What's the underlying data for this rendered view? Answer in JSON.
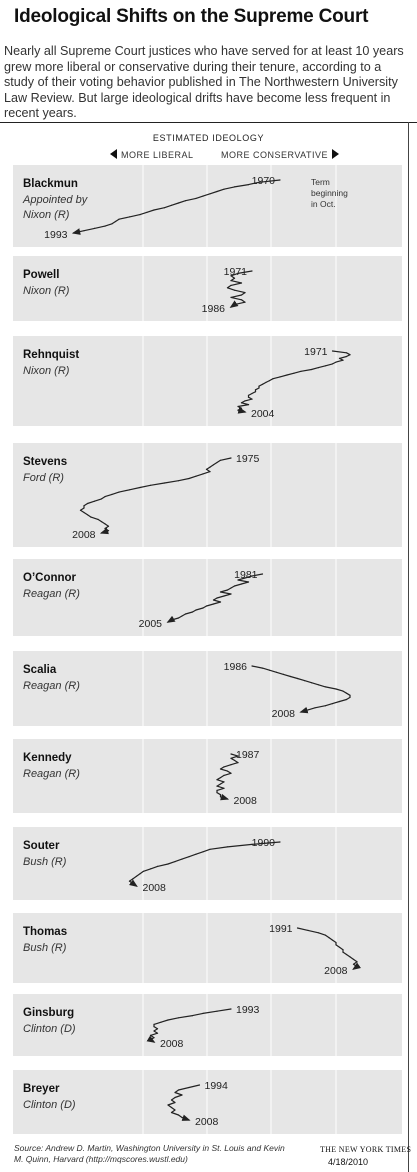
{
  "title": "Ideological Shifts on the Supreme Court",
  "subtitle": "Nearly all Supreme Court justices who have served for at least 10 years grew more liberal or conservative during their tenure, according to a study of their voting behavior published in The Northwestern University Law Review. But large ideological drifts have become less frequent in recent years.",
  "axis": {
    "heading": "ESTIMATED IDEOLOGY",
    "left_label": "MORE LIBERAL",
    "right_label": "MORE CONSERVATIVE"
  },
  "source": "Source: Andrew D. Martin, Washington University in St. Louis and Kevin M. Quinn, Harvard (http://mqscores.wustl.edu)",
  "credit": "THE NEW YORK TIMES",
  "date": "4/18/2010",
  "colors": {
    "panel": "#e6e6e6",
    "grid": "#ffffff",
    "line": "#222222"
  },
  "chart_data": {
    "type": "line",
    "xlabel": "ESTIMATED IDEOLOGY",
    "ylabel": "",
    "x_direction": [
      "MORE LIBERAL",
      "MORE CONSERVATIVE"
    ],
    "xlim": [
      -4,
      4
    ],
    "grid": true,
    "series": [
      {
        "name": "Blackmun",
        "appointed": [
          "Appointed by",
          "Nixon (R)"
        ],
        "start_label": "1970",
        "end_label": "1993",
        "note": [
          "Term",
          "beginning",
          "in Oct."
        ],
        "x": [
          2.0,
          1.4,
          1.1,
          0.7,
          0.4,
          0.2,
          0.0,
          -0.2,
          -0.4,
          -0.7,
          -0.9,
          -1.1,
          -1.3,
          -1.6,
          -1.8,
          -2.0,
          -2.3,
          -2.6,
          -2.7,
          -2.8,
          -3.0,
          -3.3,
          -3.6,
          -3.9
        ],
        "y": [
          1970,
          1971,
          1972,
          1973,
          1974,
          1975,
          1976,
          1977,
          1978,
          1979,
          1980,
          1981,
          1982,
          1983,
          1984,
          1985,
          1986,
          1987,
          1988,
          1989,
          1990,
          1991,
          1992,
          1993
        ]
      },
      {
        "name": "Powell",
        "appointed": [
          "Nixon (R)"
        ],
        "start_label": "1971",
        "end_label": "1986",
        "x": [
          1.2,
          0.8,
          0.6,
          0.7,
          0.6,
          0.9,
          0.6,
          0.5,
          0.7,
          1.0,
          0.9,
          0.6,
          0.9,
          1.0,
          0.7,
          0.6
        ],
        "y": [
          1971,
          1972,
          1973,
          1974,
          1975,
          1976,
          1977,
          1978,
          1979,
          1980,
          1981,
          1982,
          1983,
          1984,
          1985,
          1986
        ]
      },
      {
        "name": "Rehnquist",
        "appointed": [
          "Nixon (R)"
        ],
        "start_label": "1971",
        "end_label": "2004",
        "x": [
          3.5,
          3.9,
          4.0,
          3.9,
          3.7,
          3.8,
          3.6,
          3.5,
          3.3,
          3.1,
          2.9,
          2.6,
          2.4,
          2.2,
          2.0,
          1.8,
          1.7,
          1.6,
          1.5,
          1.4,
          1.4,
          1.3,
          1.3,
          1.2,
          1.1,
          1.1,
          1.2,
          1.0,
          0.9,
          1.1,
          0.8,
          0.9,
          0.8,
          1.0
        ],
        "y": [
          1971,
          1972,
          1973,
          1974,
          1975,
          1976,
          1977,
          1978,
          1979,
          1980,
          1981,
          1982,
          1983,
          1984,
          1985,
          1986,
          1987,
          1988,
          1989,
          1990,
          1991,
          1992,
          1993,
          1994,
          1995,
          1996,
          1997,
          1998,
          1999,
          2000,
          2001,
          2002,
          2003,
          2004
        ]
      },
      {
        "name": "Stevens",
        "appointed": [
          "Ford (R)"
        ],
        "start_label": "1975",
        "end_label": "2008",
        "x": [
          0.6,
          0.3,
          0.2,
          0.1,
          0.0,
          -0.1,
          0.0,
          -0.2,
          -0.4,
          -0.6,
          -0.9,
          -1.3,
          -1.7,
          -2.0,
          -2.3,
          -2.6,
          -2.8,
          -3.0,
          -3.1,
          -3.3,
          -3.5,
          -3.6,
          -3.6,
          -3.7,
          -3.6,
          -3.5,
          -3.4,
          -3.2,
          -3.1,
          -3.0,
          -2.9,
          -3.0,
          -2.9,
          -3.1
        ],
        "y": [
          1975,
          1976,
          1977,
          1978,
          1979,
          1980,
          1981,
          1982,
          1983,
          1984,
          1985,
          1986,
          1987,
          1988,
          1989,
          1990,
          1991,
          1992,
          1993,
          1994,
          1995,
          1996,
          1997,
          1998,
          1999,
          2000,
          2001,
          2002,
          2003,
          2004,
          2005,
          2006,
          2007,
          2008
        ]
      },
      {
        "name": "O’Connor",
        "appointed": [
          "Reagan (R)"
        ],
        "start_label": "1981",
        "end_label": "2005",
        "x": [
          1.5,
          1.2,
          1.0,
          0.8,
          1.1,
          0.9,
          0.7,
          0.6,
          0.5,
          0.3,
          0.6,
          0.4,
          0.2,
          0.1,
          0.3,
          0.1,
          -0.1,
          -0.2,
          -0.4,
          -0.5,
          -0.7,
          -0.8,
          -0.9,
          -1.1,
          -1.2
        ],
        "y": [
          1981,
          1982,
          1983,
          1984,
          1985,
          1986,
          1987,
          1988,
          1989,
          1990,
          1991,
          1992,
          1993,
          1994,
          1995,
          1996,
          1997,
          1998,
          1999,
          2000,
          2001,
          2002,
          2003,
          2004,
          2005
        ]
      },
      {
        "name": "Scalia",
        "appointed": [
          "Reagan (R)"
        ],
        "start_label": "1986",
        "end_label": "2008",
        "x": [
          1.2,
          1.5,
          1.7,
          1.9,
          2.1,
          2.3,
          2.5,
          2.7,
          2.9,
          3.1,
          3.3,
          3.6,
          3.8,
          3.9,
          4.0,
          4.0,
          3.9,
          3.7,
          3.5,
          3.3,
          3.0,
          2.8,
          2.6
        ],
        "y": [
          1986,
          1987,
          1988,
          1989,
          1990,
          1991,
          1992,
          1993,
          1994,
          1995,
          1996,
          1997,
          1998,
          1999,
          2000,
          2001,
          2002,
          2003,
          2004,
          2005,
          2006,
          2007,
          2008
        ]
      },
      {
        "name": "Kennedy",
        "appointed": [
          "Reagan (R)"
        ],
        "start_label": "1987",
        "end_label": "2008",
        "x": [
          0.6,
          0.8,
          0.6,
          0.7,
          0.8,
          0.6,
          0.4,
          0.3,
          0.5,
          0.6,
          0.4,
          0.3,
          0.2,
          0.4,
          0.3,
          0.2,
          0.4,
          0.2,
          0.2,
          0.3,
          0.3,
          0.5
        ],
        "y": [
          1987,
          1988,
          1989,
          1990,
          1991,
          1992,
          1993,
          1994,
          1995,
          1996,
          1997,
          1998,
          1999,
          2000,
          2001,
          2002,
          2003,
          2004,
          2005,
          2006,
          2007,
          2008
        ]
      },
      {
        "name": "Souter",
        "appointed": [
          "Bush (R)"
        ],
        "start_label": "1990",
        "end_label": "2008",
        "x": [
          2.0,
          1.2,
          0.5,
          0.0,
          -0.2,
          -0.4,
          -0.6,
          -0.8,
          -1.0,
          -1.2,
          -1.5,
          -1.7,
          -1.9,
          -2.0,
          -2.1,
          -2.2,
          -2.3,
          -2.2,
          -2.1
        ],
        "y": [
          1990,
          1991,
          1992,
          1993,
          1994,
          1995,
          1996,
          1997,
          1998,
          1999,
          2000,
          2001,
          2002,
          2003,
          2004,
          2005,
          2006,
          2007,
          2008
        ]
      },
      {
        "name": "Thomas",
        "appointed": [
          "Bush (R)"
        ],
        "start_label": "1991",
        "end_label": "2008",
        "x": [
          2.5,
          2.8,
          3.1,
          3.3,
          3.4,
          3.5,
          3.6,
          3.6,
          3.7,
          3.8,
          3.8,
          3.9,
          4.0,
          4.1,
          4.2,
          4.1,
          4.2,
          4.1
        ],
        "y": [
          1991,
          1992,
          1993,
          1994,
          1995,
          1996,
          1997,
          1998,
          1999,
          2000,
          2001,
          2002,
          2003,
          2004,
          2005,
          2006,
          2007,
          2008
        ]
      },
      {
        "name": "Ginsburg",
        "appointed": [
          "Clinton (D)"
        ],
        "start_label": "1993",
        "end_label": "2008",
        "x": [
          0.6,
          0.2,
          -0.2,
          -0.5,
          -0.9,
          -1.2,
          -1.4,
          -1.6,
          -1.6,
          -1.5,
          -1.6,
          -1.5,
          -1.7,
          -1.6,
          -1.7,
          -1.6
        ],
        "y": [
          1993,
          1994,
          1995,
          1996,
          1997,
          1998,
          1999,
          2000,
          2001,
          2002,
          2003,
          2004,
          2005,
          2006,
          2007,
          2008
        ]
      },
      {
        "name": "Breyer",
        "appointed": [
          "Clinton (D)"
        ],
        "start_label": "1994",
        "end_label": "2008",
        "x": [
          -0.3,
          -0.6,
          -0.9,
          -1.0,
          -0.8,
          -1.0,
          -1.1,
          -1.0,
          -1.2,
          -1.1,
          -1.0,
          -1.1,
          -0.9,
          -0.8,
          -0.6
        ],
        "y": [
          1994,
          1995,
          1996,
          1997,
          1998,
          1999,
          2000,
          2001,
          2002,
          2003,
          2004,
          2005,
          2006,
          2007,
          2008
        ]
      }
    ]
  }
}
